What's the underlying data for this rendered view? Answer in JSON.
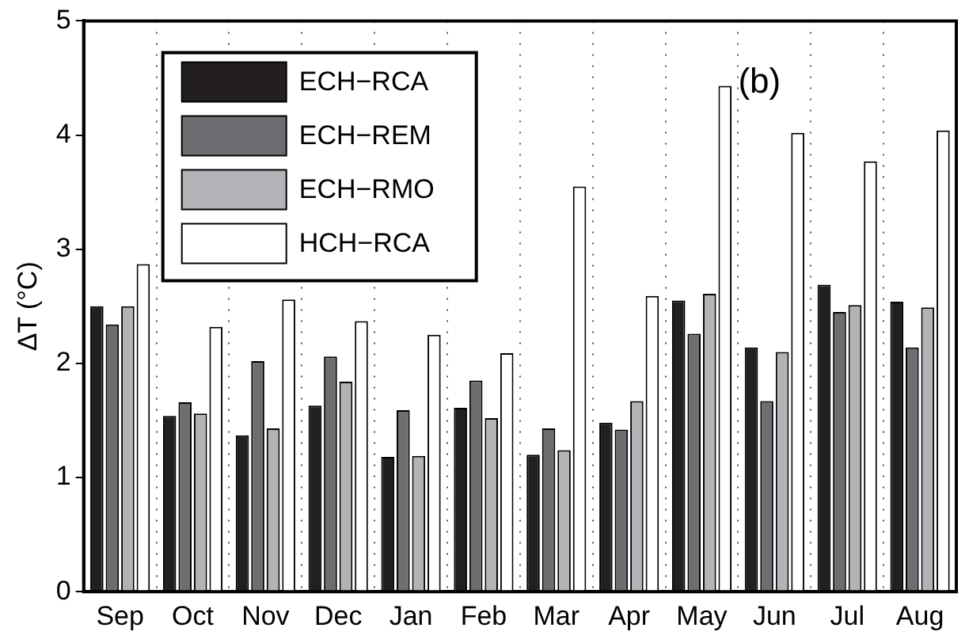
{
  "chart_data": {
    "type": "bar",
    "ylabel": "ΔT (°C)",
    "annotations": [
      "(b)"
    ],
    "categories": [
      "Sep",
      "Oct",
      "Nov",
      "Dec",
      "Jan",
      "Feb",
      "Mar",
      "Apr",
      "May",
      "Jun",
      "Jul",
      "Aug"
    ],
    "series": [
      {
        "name": "ECH−RCA",
        "color": "#231f20",
        "values": [
          2.5,
          1.54,
          1.37,
          1.63,
          1.18,
          1.61,
          1.2,
          1.48,
          2.55,
          2.14,
          2.69,
          2.54
        ]
      },
      {
        "name": "ECH−REM",
        "color": "#6d6e71",
        "values": [
          2.34,
          1.66,
          2.02,
          2.06,
          1.59,
          1.85,
          1.43,
          1.42,
          2.26,
          1.67,
          2.45,
          2.14
        ]
      },
      {
        "name": "ECH−RMO",
        "color": "#b1b3b6",
        "values": [
          2.5,
          1.56,
          1.43,
          1.84,
          1.19,
          1.52,
          1.24,
          1.67,
          2.61,
          2.1,
          2.51,
          2.49
        ]
      },
      {
        "name": "HCH−RCA",
        "color": "#ffffff",
        "values": [
          2.87,
          2.32,
          2.56,
          2.37,
          2.25,
          2.09,
          3.55,
          2.59,
          4.43,
          4.02,
          3.77,
          4.04
        ]
      }
    ],
    "ylim": [
      0,
      5
    ],
    "yticks": [
      0,
      1,
      2,
      3,
      4,
      5
    ],
    "grid": "x",
    "legend": "top left"
  }
}
